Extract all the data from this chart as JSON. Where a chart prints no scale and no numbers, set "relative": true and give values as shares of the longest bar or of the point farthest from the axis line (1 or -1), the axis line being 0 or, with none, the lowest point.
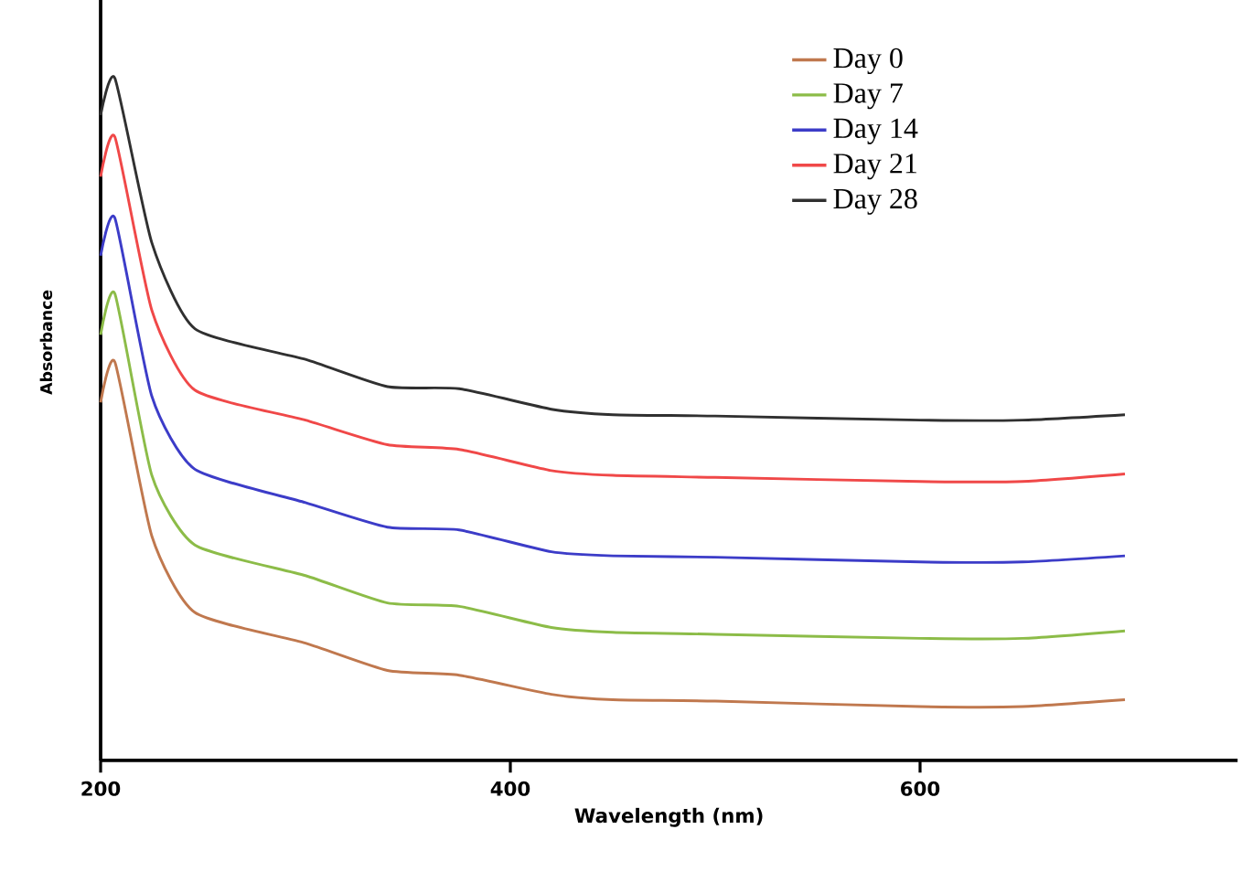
{
  "chart_data": {
    "type": "line",
    "xlabel": "Wavelength (nm)",
    "ylabel": "Absorbance",
    "relative": true,
    "xlim": [
      200,
      755
    ],
    "xticks": [
      200,
      400,
      600
    ],
    "legend": "top right",
    "line_style": "solid",
    "series": [
      {
        "name": "Day 0",
        "color": "#c0784e",
        "x": [
          200,
          207,
          225,
          246,
          300,
          340,
          375,
          420,
          450,
          500,
          600,
          650,
          700
        ],
        "values": [
          0.525,
          0.584,
          0.329,
          0.217,
          0.172,
          0.132,
          0.125,
          0.097,
          0.089,
          0.087,
          0.079,
          0.079,
          0.089
        ]
      },
      {
        "name": "Day 7",
        "color": "#8cbc48",
        "x": [
          200,
          207,
          225,
          246,
          300,
          340,
          375,
          420,
          450,
          500,
          600,
          650,
          700
        ],
        "values": [
          0.624,
          0.684,
          0.418,
          0.316,
          0.271,
          0.231,
          0.226,
          0.195,
          0.188,
          0.185,
          0.179,
          0.179,
          0.19
        ]
      },
      {
        "name": "Day 14",
        "color": "#3c3cc8",
        "x": [
          200,
          207,
          225,
          246,
          300,
          340,
          375,
          420,
          450,
          500,
          600,
          650,
          700
        ],
        "values": [
          0.74,
          0.795,
          0.534,
          0.427,
          0.378,
          0.342,
          0.338,
          0.306,
          0.3,
          0.298,
          0.291,
          0.291,
          0.3
        ]
      },
      {
        "name": "Day 21",
        "color": "#f04848",
        "x": [
          200,
          207,
          225,
          246,
          300,
          340,
          375,
          420,
          450,
          500,
          600,
          650,
          700
        ],
        "values": [
          0.856,
          0.914,
          0.66,
          0.543,
          0.499,
          0.463,
          0.456,
          0.425,
          0.418,
          0.415,
          0.409,
          0.409,
          0.42
        ]
      },
      {
        "name": "Day 28",
        "color": "#303030",
        "x": [
          200,
          207,
          225,
          246,
          300,
          340,
          375,
          420,
          450,
          500,
          600,
          650,
          700
        ],
        "values": [
          0.946,
          1.0,
          0.759,
          0.633,
          0.588,
          0.548,
          0.545,
          0.515,
          0.507,
          0.505,
          0.499,
          0.499,
          0.507
        ]
      }
    ]
  }
}
